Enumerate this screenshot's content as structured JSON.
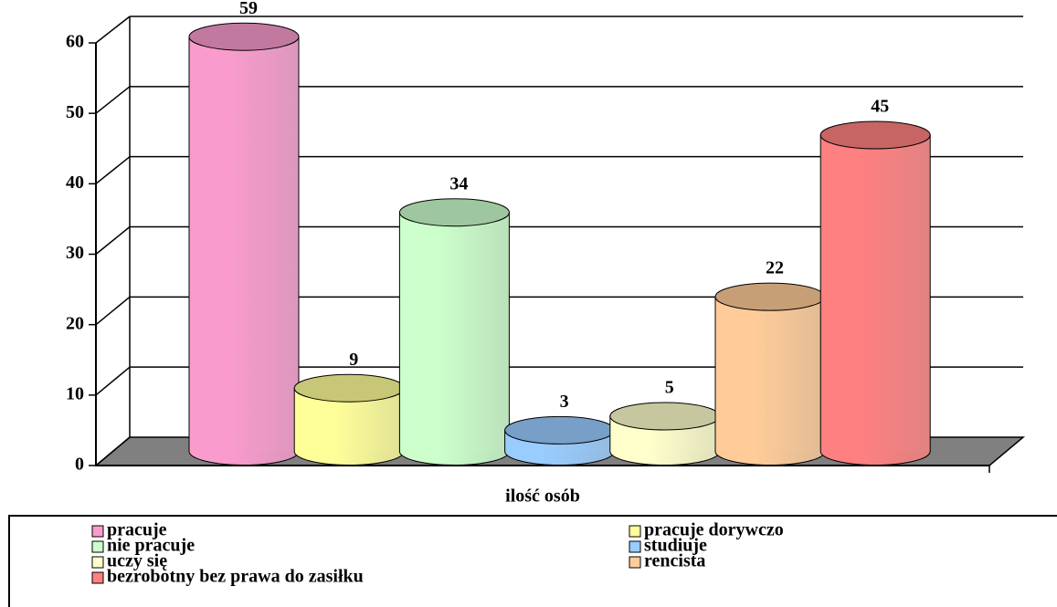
{
  "chart_data": {
    "type": "bar3d-cylinder",
    "categories": [
      "ilość osób"
    ],
    "series": [
      {
        "name": "pracuje",
        "color": "#f99ccd",
        "values": [
          59
        ]
      },
      {
        "name": "pracuje dorywczo",
        "color": "#ffff99",
        "values": [
          9
        ]
      },
      {
        "name": "nie pracuje",
        "color": "#ccffcc",
        "values": [
          34
        ]
      },
      {
        "name": "studiuje",
        "color": "#99ccff",
        "values": [
          3
        ]
      },
      {
        "name": "uczy się",
        "color": "#ffffcc",
        "values": [
          5
        ]
      },
      {
        "name": "rencista",
        "color": "#ffcc99",
        "values": [
          22
        ]
      },
      {
        "name": "bezrobotny bez prawa do zasiłku",
        "color": "#ff8080",
        "values": [
          45
        ]
      }
    ],
    "ylim": [
      0,
      60
    ],
    "yticks": [
      0,
      10,
      20,
      30,
      40,
      50,
      60
    ],
    "grid": true,
    "legend": "bottom"
  }
}
